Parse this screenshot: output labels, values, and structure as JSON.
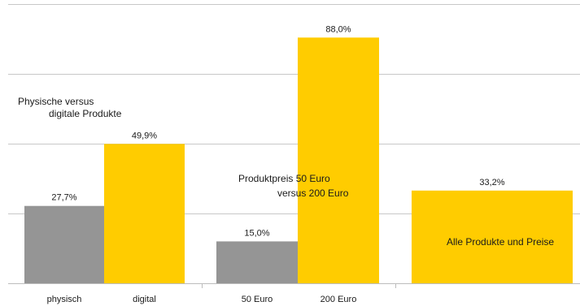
{
  "chart_data": {
    "type": "bar",
    "categories": [
      "physisch",
      "digital",
      "50 Euro",
      "200 Euro",
      ""
    ],
    "values": [
      27.7,
      49.9,
      15.0,
      88.0,
      33.2
    ],
    "value_labels": [
      "27,7%",
      "49,9%",
      "15,0%",
      "88,0%",
      "33,2%"
    ],
    "bar_colors": [
      "#959595",
      "#ffcc00",
      "#959595",
      "#ffcc00",
      "#ffcc00"
    ],
    "ylim": [
      0,
      100
    ],
    "grid": true,
    "annotations": {
      "group1_line1": "Physische versus",
      "group1_line2": "digitale Produkte",
      "group2_line1": "Produktpreis 50 Euro",
      "group2_line2": "versus 200 Euro",
      "group3": "Alle Produkte und Preise"
    }
  }
}
